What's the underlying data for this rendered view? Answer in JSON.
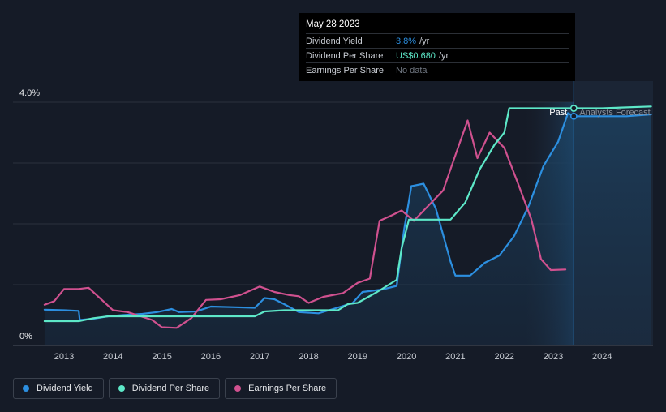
{
  "chart_data": {
    "type": "line",
    "title": "",
    "xlabel": "",
    "ylabel": "",
    "x_ticks": [
      "2013",
      "2014",
      "2015",
      "2016",
      "2017",
      "2018",
      "2019",
      "2020",
      "2021",
      "2022",
      "2023",
      "2024"
    ],
    "y_tick_labels": [
      "4.0%",
      "0%"
    ],
    "ylim": [
      0,
      4.0
    ],
    "xlim": [
      2012.5,
      2025.0
    ],
    "past_label": "Past",
    "forecast_label": "Analysts Forecast",
    "forecast_start": 2023.42,
    "series": [
      {
        "name": "Dividend Yield",
        "color": "#2c8fe0",
        "points": [
          [
            2012.6,
            0.59
          ],
          [
            2013.0,
            0.58
          ],
          [
            2013.3,
            0.57
          ],
          [
            2013.32,
            0.42
          ],
          [
            2013.6,
            0.44
          ],
          [
            2013.9,
            0.48
          ],
          [
            2014.2,
            0.5
          ],
          [
            2014.6,
            0.52
          ],
          [
            2014.9,
            0.55
          ],
          [
            2015.2,
            0.6
          ],
          [
            2015.35,
            0.55
          ],
          [
            2015.7,
            0.56
          ],
          [
            2016.0,
            0.64
          ],
          [
            2016.5,
            0.63
          ],
          [
            2016.9,
            0.62
          ],
          [
            2017.1,
            0.78
          ],
          [
            2017.3,
            0.76
          ],
          [
            2017.5,
            0.68
          ],
          [
            2017.8,
            0.55
          ],
          [
            2018.2,
            0.53
          ],
          [
            2018.5,
            0.6
          ],
          [
            2018.9,
            0.7
          ],
          [
            2019.1,
            0.88
          ],
          [
            2019.5,
            0.92
          ],
          [
            2019.8,
            0.98
          ],
          [
            2019.95,
            1.9
          ],
          [
            2020.1,
            2.62
          ],
          [
            2020.35,
            2.66
          ],
          [
            2020.6,
            2.25
          ],
          [
            2020.9,
            1.38
          ],
          [
            2021.0,
            1.15
          ],
          [
            2021.3,
            1.15
          ],
          [
            2021.6,
            1.36
          ],
          [
            2021.9,
            1.48
          ],
          [
            2022.2,
            1.8
          ],
          [
            2022.5,
            2.3
          ],
          [
            2022.8,
            2.95
          ],
          [
            2023.1,
            3.35
          ],
          [
            2023.3,
            3.82
          ],
          [
            2023.42,
            3.77
          ],
          [
            2024.0,
            3.77
          ],
          [
            2024.5,
            3.77
          ],
          [
            2025.0,
            3.8
          ]
        ]
      },
      {
        "name": "Dividend Per Share",
        "color": "#5de8c8",
        "points": [
          [
            2012.6,
            0.4
          ],
          [
            2013.3,
            0.4
          ],
          [
            2013.6,
            0.45
          ],
          [
            2013.9,
            0.48
          ],
          [
            2014.3,
            0.48
          ],
          [
            2016.9,
            0.48
          ],
          [
            2017.1,
            0.56
          ],
          [
            2017.5,
            0.58
          ],
          [
            2018.6,
            0.58
          ],
          [
            2018.8,
            0.68
          ],
          [
            2019.0,
            0.7
          ],
          [
            2019.4,
            0.88
          ],
          [
            2019.8,
            1.08
          ],
          [
            2019.9,
            1.6
          ],
          [
            2020.05,
            2.07
          ],
          [
            2020.3,
            2.07
          ],
          [
            2020.9,
            2.07
          ],
          [
            2021.2,
            2.35
          ],
          [
            2021.5,
            2.9
          ],
          [
            2021.8,
            3.3
          ],
          [
            2022.0,
            3.5
          ],
          [
            2022.1,
            3.9
          ],
          [
            2023.42,
            3.9
          ],
          [
            2024.0,
            3.9
          ],
          [
            2025.0,
            3.93
          ]
        ]
      },
      {
        "name": "Earnings Per Share",
        "color": "#d0518f",
        "points": [
          [
            2012.6,
            0.67
          ],
          [
            2012.8,
            0.73
          ],
          [
            2013.0,
            0.93
          ],
          [
            2013.3,
            0.93
          ],
          [
            2013.5,
            0.95
          ],
          [
            2013.8,
            0.73
          ],
          [
            2014.0,
            0.58
          ],
          [
            2014.3,
            0.55
          ],
          [
            2014.8,
            0.42
          ],
          [
            2015.0,
            0.3
          ],
          [
            2015.3,
            0.29
          ],
          [
            2015.6,
            0.45
          ],
          [
            2015.9,
            0.75
          ],
          [
            2016.2,
            0.76
          ],
          [
            2016.6,
            0.83
          ],
          [
            2017.0,
            0.97
          ],
          [
            2017.3,
            0.88
          ],
          [
            2017.6,
            0.83
          ],
          [
            2017.8,
            0.81
          ],
          [
            2018.0,
            0.7
          ],
          [
            2018.3,
            0.8
          ],
          [
            2018.7,
            0.86
          ],
          [
            2019.0,
            1.03
          ],
          [
            2019.25,
            1.1
          ],
          [
            2019.45,
            2.05
          ],
          [
            2019.7,
            2.14
          ],
          [
            2019.9,
            2.22
          ],
          [
            2020.15,
            2.05
          ],
          [
            2020.45,
            2.3
          ],
          [
            2020.75,
            2.55
          ],
          [
            2021.0,
            3.13
          ],
          [
            2021.25,
            3.7
          ],
          [
            2021.45,
            3.08
          ],
          [
            2021.7,
            3.5
          ],
          [
            2022.0,
            3.25
          ],
          [
            2022.3,
            2.62
          ],
          [
            2022.55,
            2.08
          ],
          [
            2022.75,
            1.42
          ],
          [
            2022.95,
            1.24
          ],
          [
            2023.25,
            1.25
          ]
        ]
      }
    ],
    "markers": [
      {
        "series": "Dividend Yield",
        "x": 2023.42,
        "y": 3.77
      },
      {
        "series": "Dividend Per Share",
        "x": 2023.42,
        "y": 3.9
      }
    ]
  },
  "tooltip": {
    "date": "May 28 2023",
    "rows": [
      {
        "label": "Dividend Yield",
        "value": "3.8%",
        "unit": "/yr",
        "color": "#2c8fe0"
      },
      {
        "label": "Dividend Per Share",
        "value": "US$0.680",
        "unit": "/yr",
        "color": "#5de8c8"
      },
      {
        "label": "Earnings Per Share",
        "value": "No data",
        "unit": "",
        "color": ""
      }
    ]
  },
  "legend": [
    {
      "label": "Dividend Yield",
      "color": "#2c8fe0"
    },
    {
      "label": "Dividend Per Share",
      "color": "#5de8c8"
    },
    {
      "label": "Earnings Per Share",
      "color": "#d0518f"
    }
  ]
}
